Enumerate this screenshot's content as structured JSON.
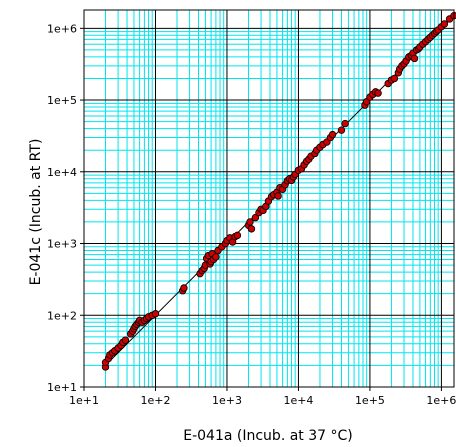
{
  "chart_data": {
    "type": "scatter",
    "title": "",
    "xlabel": "E-041a (Incub. at 37 °C)",
    "ylabel": "E-041c (Incub. at RT)",
    "x_scale": "log",
    "y_scale": "log",
    "xlim": [
      10,
      1500000
    ],
    "ylim": [
      10,
      1800000
    ],
    "x_ticks": [
      {
        "value": 10,
        "label": "1e+1"
      },
      {
        "value": 100,
        "label": "1e+2"
      },
      {
        "value": 1000,
        "label": "1e+3"
      },
      {
        "value": 10000,
        "label": "1e+4"
      },
      {
        "value": 100000,
        "label": "1e+5"
      },
      {
        "value": 1000000,
        "label": "1e+6"
      }
    ],
    "y_ticks": [
      {
        "value": 10,
        "label": "1e+1"
      },
      {
        "value": 100,
        "label": "1e+2"
      },
      {
        "value": 1000,
        "label": "1e+3"
      },
      {
        "value": 10000,
        "label": "1e+4"
      },
      {
        "value": 100000,
        "label": "1e+5"
      },
      {
        "value": 1000000,
        "label": "1e+6"
      }
    ],
    "grid": true,
    "major_grid_color": "#000000",
    "minor_grid_color": "#00e5ee",
    "marker_color": "#cc0000",
    "line_color": "#000000",
    "fit_line": {
      "from": [
        20,
        20
      ],
      "to": [
        1500000,
        1500000
      ]
    },
    "points": [
      {
        "x": 20,
        "y": 19
      },
      {
        "x": 20,
        "y": 22
      },
      {
        "x": 22,
        "y": 25
      },
      {
        "x": 23,
        "y": 28
      },
      {
        "x": 25,
        "y": 30
      },
      {
        "x": 27,
        "y": 32
      },
      {
        "x": 30,
        "y": 35
      },
      {
        "x": 33,
        "y": 38
      },
      {
        "x": 35,
        "y": 42
      },
      {
        "x": 38,
        "y": 45
      },
      {
        "x": 45,
        "y": 55
      },
      {
        "x": 48,
        "y": 60
      },
      {
        "x": 50,
        "y": 65
      },
      {
        "x": 52,
        "y": 70
      },
      {
        "x": 55,
        "y": 75
      },
      {
        "x": 58,
        "y": 80
      },
      {
        "x": 60,
        "y": 85
      },
      {
        "x": 65,
        "y": 80
      },
      {
        "x": 70,
        "y": 85
      },
      {
        "x": 75,
        "y": 90
      },
      {
        "x": 80,
        "y": 95
      },
      {
        "x": 90,
        "y": 100
      },
      {
        "x": 100,
        "y": 105
      },
      {
        "x": 240,
        "y": 220
      },
      {
        "x": 250,
        "y": 240
      },
      {
        "x": 420,
        "y": 380
      },
      {
        "x": 450,
        "y": 420
      },
      {
        "x": 480,
        "y": 450
      },
      {
        "x": 500,
        "y": 500
      },
      {
        "x": 520,
        "y": 620
      },
      {
        "x": 550,
        "y": 680
      },
      {
        "x": 580,
        "y": 520
      },
      {
        "x": 600,
        "y": 560
      },
      {
        "x": 620,
        "y": 720
      },
      {
        "x": 650,
        "y": 600
      },
      {
        "x": 700,
        "y": 650
      },
      {
        "x": 750,
        "y": 800
      },
      {
        "x": 850,
        "y": 900
      },
      {
        "x": 950,
        "y": 1000
      },
      {
        "x": 1000,
        "y": 1100
      },
      {
        "x": 1100,
        "y": 1200
      },
      {
        "x": 1200,
        "y": 1050
      },
      {
        "x": 1300,
        "y": 1250
      },
      {
        "x": 1400,
        "y": 1300
      },
      {
        "x": 2000,
        "y": 1800
      },
      {
        "x": 2100,
        "y": 2000
      },
      {
        "x": 2200,
        "y": 1600
      },
      {
        "x": 2500,
        "y": 2300
      },
      {
        "x": 2800,
        "y": 2700
      },
      {
        "x": 3000,
        "y": 3000
      },
      {
        "x": 3200,
        "y": 2900
      },
      {
        "x": 3500,
        "y": 3300
      },
      {
        "x": 3800,
        "y": 3900
      },
      {
        "x": 4200,
        "y": 4500
      },
      {
        "x": 4500,
        "y": 4800
      },
      {
        "x": 5000,
        "y": 5200
      },
      {
        "x": 5200,
        "y": 4600
      },
      {
        "x": 5500,
        "y": 6000
      },
      {
        "x": 6000,
        "y": 5700
      },
      {
        "x": 6500,
        "y": 6600
      },
      {
        "x": 7000,
        "y": 7500
      },
      {
        "x": 7500,
        "y": 8000
      },
      {
        "x": 8000,
        "y": 7600
      },
      {
        "x": 8500,
        "y": 8500
      },
      {
        "x": 9000,
        "y": 9200
      },
      {
        "x": 10000,
        "y": 10500
      },
      {
        "x": 11000,
        "y": 11000
      },
      {
        "x": 12000,
        "y": 12500
      },
      {
        "x": 13000,
        "y": 14000
      },
      {
        "x": 14000,
        "y": 15000
      },
      {
        "x": 15000,
        "y": 16500
      },
      {
        "x": 17000,
        "y": 18000
      },
      {
        "x": 18000,
        "y": 20000
      },
      {
        "x": 20000,
        "y": 22000
      },
      {
        "x": 22000,
        "y": 24000
      },
      {
        "x": 25000,
        "y": 26000
      },
      {
        "x": 28000,
        "y": 30000
      },
      {
        "x": 30000,
        "y": 33000
      },
      {
        "x": 40000,
        "y": 38000
      },
      {
        "x": 45000,
        "y": 47000
      },
      {
        "x": 85000,
        "y": 85000
      },
      {
        "x": 90000,
        "y": 95000
      },
      {
        "x": 100000,
        "y": 110000
      },
      {
        "x": 110000,
        "y": 120000
      },
      {
        "x": 120000,
        "y": 130000
      },
      {
        "x": 130000,
        "y": 125000
      },
      {
        "x": 180000,
        "y": 170000
      },
      {
        "x": 200000,
        "y": 190000
      },
      {
        "x": 220000,
        "y": 200000
      },
      {
        "x": 250000,
        "y": 240000
      },
      {
        "x": 260000,
        "y": 270000
      },
      {
        "x": 280000,
        "y": 300000
      },
      {
        "x": 300000,
        "y": 320000
      },
      {
        "x": 320000,
        "y": 350000
      },
      {
        "x": 350000,
        "y": 400000
      },
      {
        "x": 380000,
        "y": 420000
      },
      {
        "x": 400000,
        "y": 450000
      },
      {
        "x": 420000,
        "y": 380000
      },
      {
        "x": 450000,
        "y": 500000
      },
      {
        "x": 480000,
        "y": 520000
      },
      {
        "x": 500000,
        "y": 550000
      },
      {
        "x": 550000,
        "y": 600000
      },
      {
        "x": 600000,
        "y": 650000
      },
      {
        "x": 650000,
        "y": 700000
      },
      {
        "x": 700000,
        "y": 750000
      },
      {
        "x": 750000,
        "y": 800000
      },
      {
        "x": 800000,
        "y": 850000
      },
      {
        "x": 850000,
        "y": 900000
      },
      {
        "x": 900000,
        "y": 950000
      },
      {
        "x": 1000000,
        "y": 1050000
      },
      {
        "x": 1100000,
        "y": 1150000
      },
      {
        "x": 1300000,
        "y": 1350000
      },
      {
        "x": 1500000,
        "y": 1500000
      }
    ]
  }
}
